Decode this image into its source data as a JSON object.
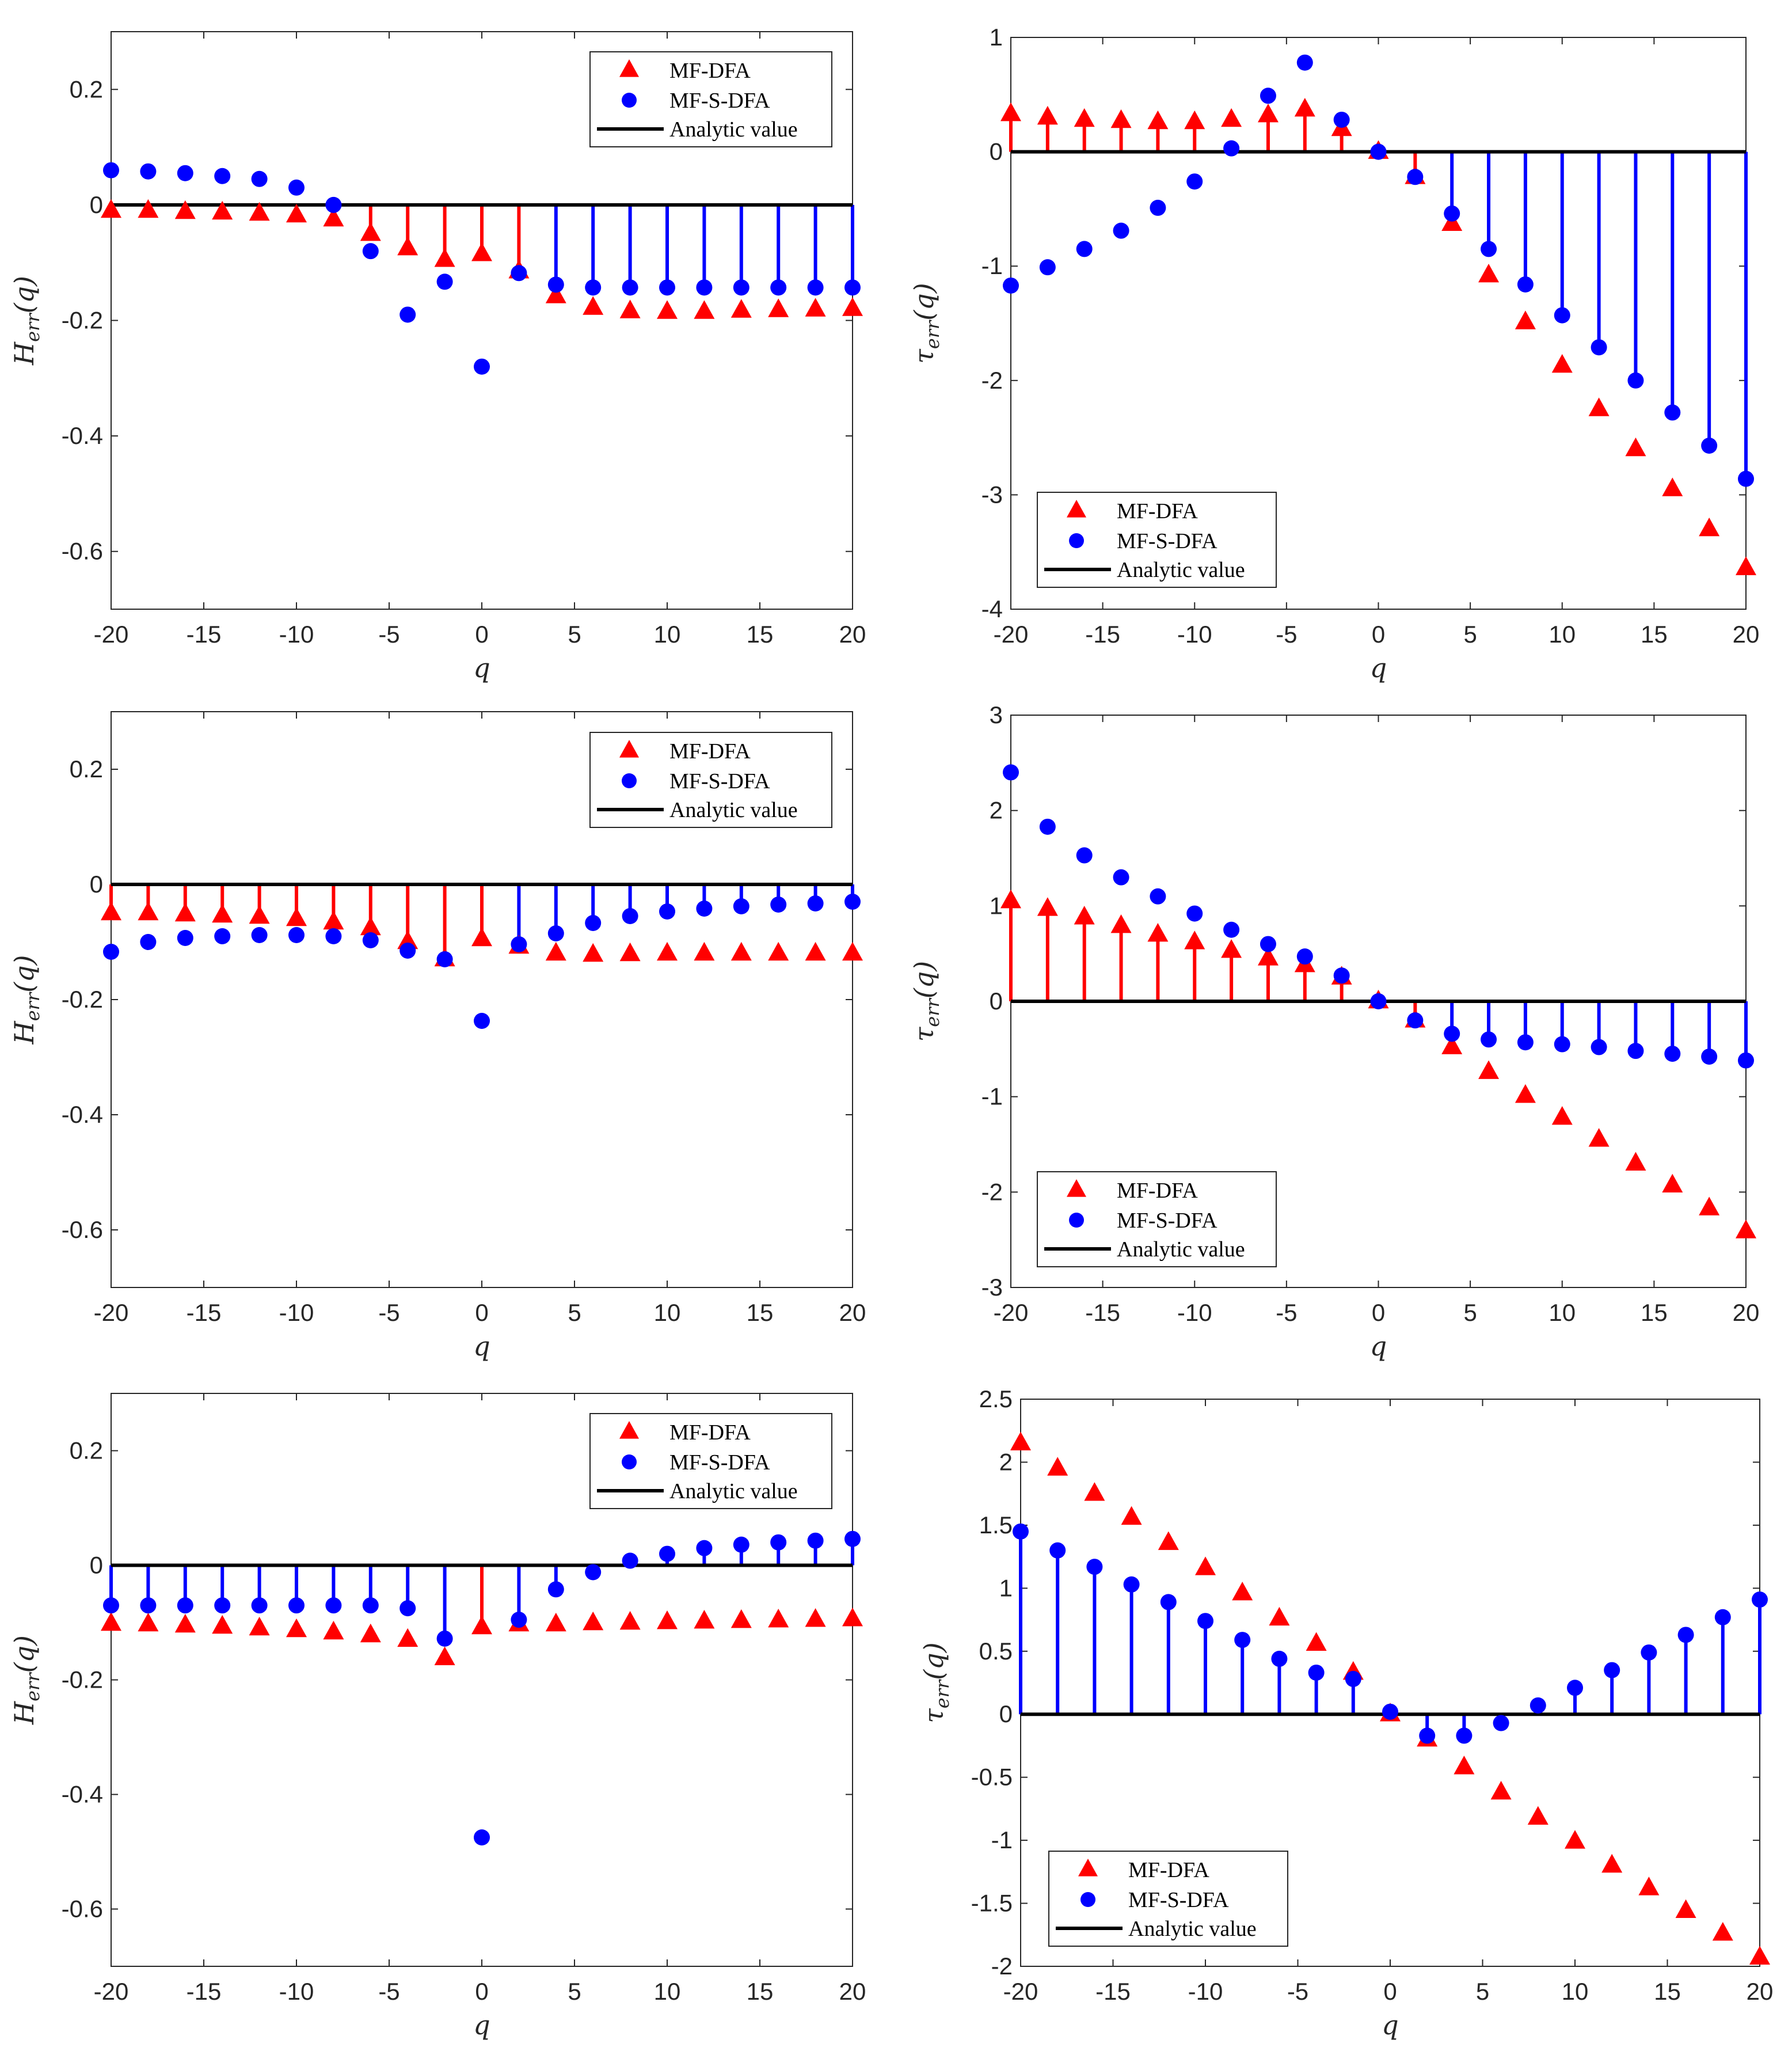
{
  "figure": {
    "description_free": true,
    "colors": {
      "mfdfa": "#ff0000",
      "mfsdfa": "#0000ff",
      "analytic": "#000000",
      "axis": "#262626"
    }
  },
  "legend_labels": [
    "MF-DFA",
    "MF-S-DFA",
    "Analytic value"
  ],
  "chart_data": [
    {
      "type": "scatter",
      "panel": "top-left",
      "xlabel": "q",
      "ylabel": "H_err(q)",
      "ylabel_main": "H",
      "ylabel_sub": "err",
      "ylabel_tail": "(q)",
      "xlim": [
        -20,
        20
      ],
      "ylim": [
        -0.7,
        0.3
      ],
      "xticks": [
        -20,
        -15,
        -10,
        -5,
        0,
        5,
        10,
        15,
        20
      ],
      "xtick_labels": [
        "-20",
        "-15",
        "-10",
        "-5",
        "0",
        "5",
        "10",
        "15",
        "20"
      ],
      "yticks": [
        -0.6,
        -0.4,
        -0.2,
        0,
        0.2
      ],
      "ytick_labels": [
        "-0.6",
        "-0.4",
        "-0.2",
        "0",
        "0.2"
      ],
      "legend_position": "top-right",
      "analytic_value": 0,
      "x": [
        -20,
        -18,
        -16,
        -14,
        -12,
        -10,
        -8,
        -6,
        -4,
        -2,
        0,
        2,
        4,
        6,
        8,
        10,
        12,
        14,
        16,
        18,
        20
      ],
      "series": [
        {
          "name": "MF-DFA",
          "marker": "triangle",
          "values": [
            -0.01,
            -0.01,
            -0.012,
            -0.013,
            -0.015,
            -0.018,
            -0.025,
            -0.05,
            -0.075,
            -0.095,
            -0.085,
            -0.115,
            -0.158,
            -0.178,
            -0.184,
            -0.185,
            -0.185,
            -0.183,
            -0.182,
            -0.181,
            -0.18
          ]
        },
        {
          "name": "MF-S-DFA",
          "marker": "circle",
          "values": [
            0.06,
            0.058,
            0.055,
            0.05,
            0.045,
            0.03,
            0.0,
            -0.08,
            -0.19,
            -0.133,
            -0.28,
            -0.118,
            -0.138,
            -0.143,
            -0.143,
            -0.143,
            -0.143,
            -0.143,
            -0.143,
            -0.143,
            -0.143
          ]
        }
      ]
    },
    {
      "type": "scatter",
      "panel": "top-right",
      "xlabel": "q",
      "ylabel": "τ_err(q)",
      "ylabel_main": "τ",
      "ylabel_sub": "err",
      "ylabel_tail": "(q)",
      "xlim": [
        -20,
        20
      ],
      "ylim": [
        -4,
        1
      ],
      "xticks": [
        -20,
        -15,
        -10,
        -5,
        0,
        5,
        10,
        15,
        20
      ],
      "xtick_labels": [
        "-20",
        "-15",
        "-10",
        "-5",
        "0",
        "5",
        "10",
        "15",
        "20"
      ],
      "yticks": [
        -4,
        -3,
        -2,
        -1,
        0,
        1
      ],
      "ytick_labels": [
        "-4",
        "-3",
        "-2",
        "-1",
        "0",
        "1"
      ],
      "legend_position": "bottom-left",
      "analytic_value": 0,
      "x": [
        -20,
        -18,
        -16,
        -14,
        -12,
        -10,
        -8,
        -6,
        -4,
        -2,
        0,
        2,
        4,
        6,
        8,
        10,
        12,
        14,
        16,
        18,
        20
      ],
      "series": [
        {
          "name": "MF-DFA",
          "marker": "triangle",
          "values": [
            0.33,
            0.3,
            0.28,
            0.27,
            0.26,
            0.26,
            0.28,
            0.32,
            0.37,
            0.2,
            0.0,
            -0.22,
            -0.63,
            -1.08,
            -1.49,
            -1.87,
            -2.25,
            -2.6,
            -2.95,
            -3.3,
            -3.64
          ]
        },
        {
          "name": "MF-S-DFA",
          "marker": "circle",
          "values": [
            -1.17,
            -1.01,
            -0.85,
            -0.69,
            -0.49,
            -0.26,
            0.03,
            0.49,
            0.78,
            0.28,
            0.0,
            -0.22,
            -0.54,
            -0.85,
            -1.16,
            -1.43,
            -1.71,
            -2.0,
            -2.28,
            -2.57,
            -2.86
          ]
        }
      ]
    },
    {
      "type": "scatter",
      "panel": "middle-left",
      "xlabel": "q",
      "ylabel": "H_err(q)",
      "ylabel_main": "H",
      "ylabel_sub": "err",
      "ylabel_tail": "(q)",
      "xlim": [
        -20,
        20
      ],
      "ylim": [
        -0.7,
        0.3
      ],
      "xticks": [
        -20,
        -15,
        -10,
        -5,
        0,
        5,
        10,
        15,
        20
      ],
      "xtick_labels": [
        "-20",
        "-15",
        "-10",
        "-5",
        "0",
        "5",
        "10",
        "15",
        "20"
      ],
      "yticks": [
        -0.6,
        -0.4,
        -0.2,
        0,
        0.2
      ],
      "ytick_labels": [
        "-0.6",
        "-0.4",
        "-0.2",
        "0",
        "0.2"
      ],
      "legend_position": "top-right",
      "analytic_value": 0,
      "x": [
        -20,
        -18,
        -16,
        -14,
        -12,
        -10,
        -8,
        -6,
        -4,
        -2,
        0,
        2,
        4,
        6,
        8,
        10,
        12,
        14,
        16,
        18,
        20
      ],
      "series": [
        {
          "name": "MF-DFA",
          "marker": "triangle",
          "values": [
            -0.05,
            -0.05,
            -0.052,
            -0.054,
            -0.056,
            -0.06,
            -0.066,
            -0.076,
            -0.1,
            -0.13,
            -0.095,
            -0.108,
            -0.12,
            -0.122,
            -0.121,
            -0.12,
            -0.12,
            -0.12,
            -0.12,
            -0.12,
            -0.12
          ]
        },
        {
          "name": "MF-S-DFA",
          "marker": "circle",
          "values": [
            -0.117,
            -0.1,
            -0.093,
            -0.09,
            -0.088,
            -0.088,
            -0.09,
            -0.097,
            -0.115,
            -0.13,
            -0.237,
            -0.104,
            -0.085,
            -0.067,
            -0.055,
            -0.047,
            -0.042,
            -0.038,
            -0.035,
            -0.033,
            -0.03
          ]
        }
      ]
    },
    {
      "type": "scatter",
      "panel": "middle-right",
      "xlabel": "q",
      "ylabel": "τ_err(q)",
      "ylabel_main": "τ",
      "ylabel_sub": "err",
      "ylabel_tail": "(q)",
      "xlim": [
        -20,
        20
      ],
      "ylim": [
        -3,
        3
      ],
      "xticks": [
        -20,
        -15,
        -10,
        -5,
        0,
        5,
        10,
        15,
        20
      ],
      "xtick_labels": [
        "-20",
        "-15",
        "-10",
        "-5",
        "0",
        "5",
        "10",
        "15",
        "20"
      ],
      "yticks": [
        -3,
        -2,
        -1,
        0,
        1,
        2,
        3
      ],
      "ytick_labels": [
        "-3",
        "-2",
        "-1",
        "0",
        "1",
        "2",
        "3"
      ],
      "legend_position": "bottom-left",
      "analytic_value": 0,
      "x": [
        -20,
        -18,
        -16,
        -14,
        -12,
        -10,
        -8,
        -6,
        -4,
        -2,
        0,
        2,
        4,
        6,
        8,
        10,
        12,
        14,
        16,
        18,
        20
      ],
      "series": [
        {
          "name": "MF-DFA",
          "marker": "triangle",
          "values": [
            1.05,
            0.97,
            0.88,
            0.79,
            0.7,
            0.62,
            0.53,
            0.45,
            0.38,
            0.25,
            0.0,
            -0.2,
            -0.48,
            -0.74,
            -0.99,
            -1.22,
            -1.45,
            -1.7,
            -1.93,
            -2.17,
            -2.41
          ]
        },
        {
          "name": "MF-S-DFA",
          "marker": "circle",
          "values": [
            2.4,
            1.83,
            1.53,
            1.3,
            1.1,
            0.92,
            0.75,
            0.6,
            0.47,
            0.27,
            0.0,
            -0.2,
            -0.34,
            -0.4,
            -0.43,
            -0.45,
            -0.48,
            -0.52,
            -0.55,
            -0.58,
            -0.62
          ]
        }
      ]
    },
    {
      "type": "scatter",
      "panel": "bottom-left",
      "xlabel": "q",
      "ylabel": "H_err(q)",
      "ylabel_main": "H",
      "ylabel_sub": "err",
      "ylabel_tail": "(q)",
      "xlim": [
        -20,
        20
      ],
      "ylim": [
        -0.7,
        0.3
      ],
      "xticks": [
        -20,
        -15,
        -10,
        -5,
        0,
        5,
        10,
        15,
        20
      ],
      "xtick_labels": [
        "-20",
        "-15",
        "-10",
        "-5",
        "0",
        "5",
        "10",
        "15",
        "20"
      ],
      "yticks": [
        -0.6,
        -0.4,
        -0.2,
        0,
        0.2
      ],
      "ytick_labels": [
        "-0.6",
        "-0.4",
        "-0.2",
        "0",
        "0.2"
      ],
      "legend_position": "top-right",
      "analytic_value": 0,
      "x": [
        -20,
        -18,
        -16,
        -14,
        -12,
        -10,
        -8,
        -6,
        -4,
        -2,
        0,
        2,
        4,
        6,
        8,
        10,
        12,
        14,
        16,
        18,
        20
      ],
      "series": [
        {
          "name": "MF-DFA",
          "marker": "triangle",
          "values": [
            -0.102,
            -0.103,
            -0.105,
            -0.107,
            -0.11,
            -0.113,
            -0.117,
            -0.122,
            -0.13,
            -0.162,
            -0.108,
            -0.103,
            -0.103,
            -0.101,
            -0.1,
            -0.099,
            -0.098,
            -0.097,
            -0.096,
            -0.095,
            -0.094
          ]
        },
        {
          "name": "MF-S-DFA",
          "marker": "circle",
          "values": [
            -0.07,
            -0.07,
            -0.07,
            -0.07,
            -0.07,
            -0.07,
            -0.07,
            -0.07,
            -0.075,
            -0.128,
            -0.475,
            -0.095,
            -0.042,
            -0.012,
            0.008,
            0.02,
            0.03,
            0.036,
            0.04,
            0.043,
            0.046
          ]
        }
      ]
    },
    {
      "type": "scatter",
      "panel": "bottom-right",
      "xlabel": "q",
      "ylabel": "τ_err(q)",
      "ylabel_main": "τ",
      "ylabel_sub": "err",
      "ylabel_tail": "(q)",
      "xlim": [
        -20,
        20
      ],
      "ylim": [
        -2,
        2.5
      ],
      "xticks": [
        -20,
        -15,
        -10,
        -5,
        0,
        5,
        10,
        15,
        20
      ],
      "xtick_labels": [
        "-20",
        "-15",
        "-10",
        "-5",
        "0",
        "5",
        "10",
        "15",
        "20"
      ],
      "yticks": [
        -2,
        -1.5,
        -1,
        -0.5,
        0,
        0.5,
        1,
        1.5,
        2,
        2.5
      ],
      "ytick_labels": [
        "-2",
        "-1.5",
        "-1",
        "-0.5",
        "0",
        "0.5",
        "1",
        "1.5",
        "2",
        "2.5"
      ],
      "legend_position": "bottom-left",
      "analytic_value": 0,
      "x": [
        -20,
        -18,
        -16,
        -14,
        -12,
        -10,
        -8,
        -6,
        -4,
        -2,
        0,
        2,
        4,
        6,
        8,
        10,
        12,
        14,
        16,
        18,
        20
      ],
      "series": [
        {
          "name": "MF-DFA",
          "marker": "triangle",
          "values": [
            2.15,
            1.95,
            1.75,
            1.56,
            1.36,
            1.16,
            0.96,
            0.76,
            0.56,
            0.33,
            0.0,
            -0.2,
            -0.42,
            -0.62,
            -0.82,
            -1.01,
            -1.2,
            -1.38,
            -1.56,
            -1.74,
            -1.93
          ]
        },
        {
          "name": "MF-S-DFA",
          "marker": "circle",
          "values": [
            1.45,
            1.3,
            1.17,
            1.03,
            0.89,
            0.74,
            0.59,
            0.44,
            0.33,
            0.28,
            0.02,
            -0.17,
            -0.17,
            -0.07,
            0.07,
            0.21,
            0.35,
            0.49,
            0.63,
            0.77,
            0.91
          ]
        }
      ]
    }
  ]
}
